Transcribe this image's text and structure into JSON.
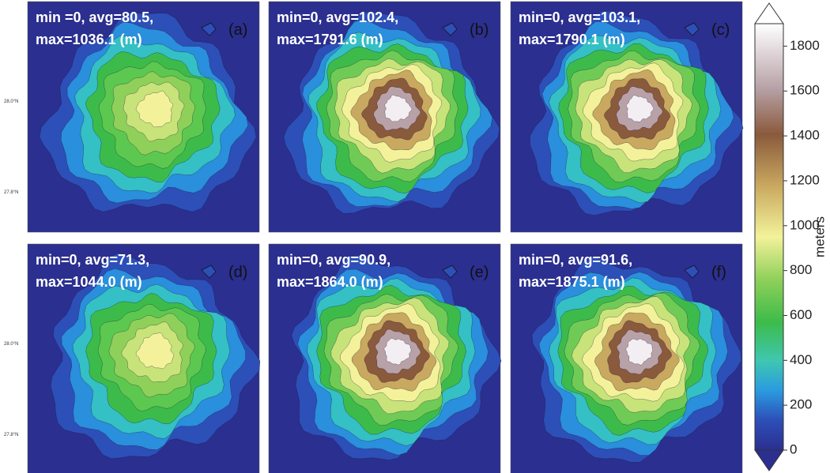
{
  "panels": [
    {
      "label": "(a)",
      "stats": [
        "min =0, avg=80.5,",
        "max=1036.1 (m)"
      ],
      "lat_labels": [
        "28.0°N",
        "27.8°N"
      ]
    },
    {
      "label": "(b)",
      "stats": [
        "min=0, avg=102.4,",
        "max=1791.6 (m)"
      ]
    },
    {
      "label": "(c)",
      "stats": [
        "min=0, avg=103.1,",
        "max=1790.1 (m)"
      ]
    },
    {
      "label": "(d)",
      "stats": [
        "min=0, avg=71.3,",
        "max=1044.0 (m)"
      ],
      "lat_labels": [
        "28.0°N",
        "27.8°N"
      ]
    },
    {
      "label": "(e)",
      "stats": [
        "min=0, avg=90.9,",
        "max=1864.0 (m)"
      ]
    },
    {
      "label": "(f)",
      "stats": [
        "min=0, avg=91.6,",
        "max=1875.1 (m)"
      ]
    }
  ],
  "colorbar": {
    "label": "meters",
    "lim": [
      0,
      1900
    ],
    "ticks": [
      0,
      200,
      400,
      600,
      800,
      1000,
      1200,
      1400,
      1600,
      1800
    ]
  }
}
